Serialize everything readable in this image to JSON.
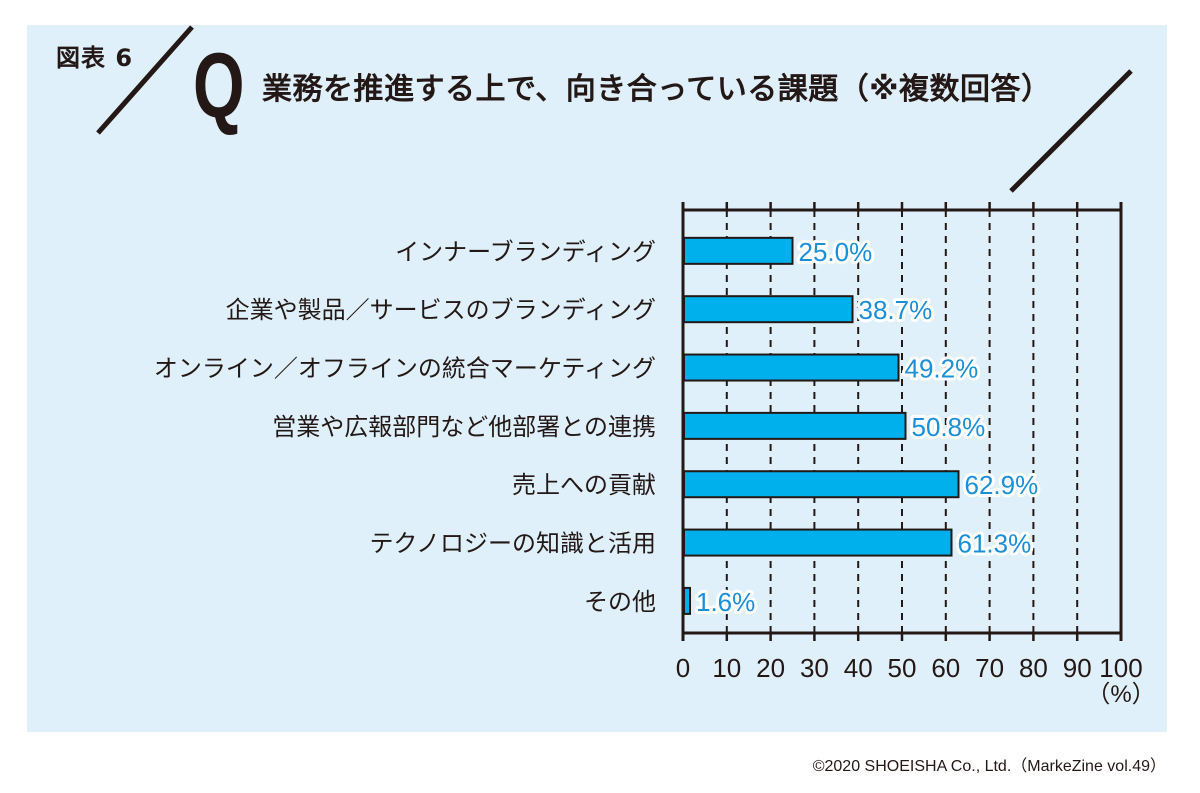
{
  "header": {
    "figure_label": "図表 6",
    "q_mark": "Q",
    "title": "業務を推進する上で、向き合っている課題（※複数回答）"
  },
  "footer": {
    "copyright": "©2020 SHOEISHA Co., Ltd.（MarkeZine vol.49）"
  },
  "colors": {
    "background_panel": "#dff0fa",
    "bar_fill": "#00b0ec",
    "bar_stroke": "#231815",
    "value_label": "#1a8fd8",
    "text": "#231815"
  },
  "chart_data": {
    "type": "bar",
    "orientation": "horizontal",
    "title": "業務を推進する上で、向き合っている課題（※複数回答）",
    "categories": [
      "インナーブランディング",
      "企業や製品／サービスのブランディング",
      "オンライン／オフラインの統合マーケティング",
      "営業や広報部門など他部署との連携",
      "売上への貢献",
      "テクノロジーの知識と活用",
      "その他"
    ],
    "values": [
      25.0,
      38.7,
      49.2,
      50.8,
      62.9,
      61.3,
      1.6
    ],
    "value_labels": [
      "25.0%",
      "38.7%",
      "49.2%",
      "50.8%",
      "62.9%",
      "61.3%",
      "1.6%"
    ],
    "xlim": [
      0,
      100
    ],
    "xticks": [
      0,
      10,
      20,
      30,
      40,
      50,
      60,
      70,
      80,
      90,
      100
    ],
    "xtick_labels": [
      "0",
      "10",
      "20",
      "30",
      "40",
      "50",
      "60",
      "70",
      "80",
      "90",
      "100"
    ],
    "xlabel": "（%）",
    "ylabel": "",
    "grid": "vertical dashed",
    "legend": "none"
  }
}
